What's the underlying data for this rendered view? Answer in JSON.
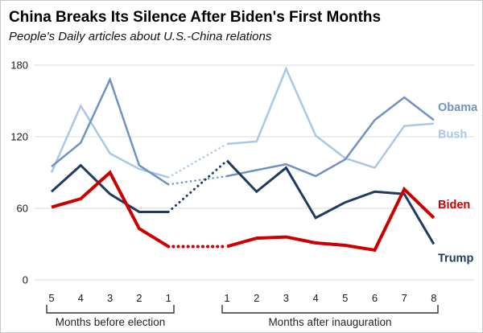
{
  "title": "China Breaks Its Silence After Biden's First Months",
  "subtitle": "People's Daily articles about U.S.-China relations",
  "chart_data": {
    "type": "line",
    "title": "China Breaks Its Silence After Biden's First Months",
    "subtitle": "People's Daily articles about U.S.-China relations",
    "y_ticks": [
      0,
      60,
      120,
      180
    ],
    "ylim": [
      0,
      195
    ],
    "grid": "horizontal",
    "legend_position": "right-end-labels",
    "x_groups": [
      {
        "label": "Months before election",
        "ticks": [
          "5",
          "4",
          "3",
          "2",
          "1"
        ]
      },
      {
        "label": "Months after inauguration",
        "ticks": [
          "1",
          "2",
          "3",
          "4",
          "5",
          "6",
          "7",
          "8"
        ]
      }
    ],
    "gap_style": "dotted segment links last month before election to first month after inauguration",
    "series": [
      {
        "name": "Bush",
        "color": "#a9c7e7",
        "before": [
          90,
          146,
          106,
          93,
          86
        ],
        "after": [
          114,
          116,
          177,
          121,
          102,
          94,
          129,
          131
        ]
      },
      {
        "name": "Obama",
        "color": "#7191c1",
        "before": [
          95,
          115,
          168,
          96,
          80
        ],
        "after": [
          87,
          92,
          97,
          87,
          101,
          134,
          153,
          134
        ]
      },
      {
        "name": "Trump",
        "color": "#1f3c5f",
        "before": [
          74,
          96,
          72,
          57,
          57
        ],
        "after": [
          100,
          74,
          94,
          52,
          65,
          74,
          72,
          30
        ]
      },
      {
        "name": "Biden",
        "color": "#cc0000",
        "before": [
          61,
          68,
          90,
          43,
          28
        ],
        "after": [
          28,
          35,
          36,
          31,
          29,
          25,
          76,
          52
        ]
      }
    ]
  }
}
